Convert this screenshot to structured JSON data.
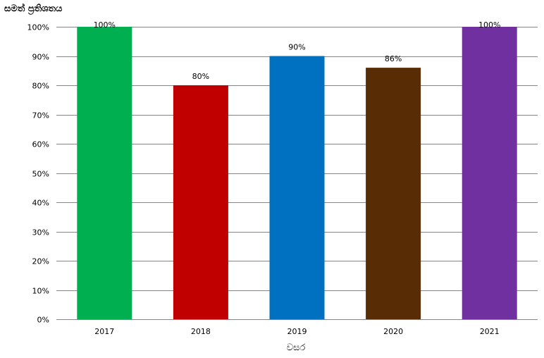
{
  "chart_data": {
    "type": "bar",
    "title": "",
    "xlabel": "වසර",
    "ylabel": "සමත් ප්‍රතිශතය",
    "categories": [
      "2017",
      "2018",
      "2019",
      "2020",
      "2021"
    ],
    "values": [
      100,
      80,
      90,
      86,
      100
    ],
    "value_labels": [
      "100%",
      "80%",
      "90%",
      "86%",
      "100%"
    ],
    "colors": [
      "#00B050",
      "#C00000",
      "#0070C0",
      "#582C04",
      "#7030A0"
    ],
    "ylim": [
      0,
      100
    ],
    "yticks": [
      0,
      10,
      20,
      30,
      40,
      50,
      60,
      70,
      80,
      90,
      100
    ],
    "ytick_labels": [
      "0%",
      "10%",
      "20%",
      "30%",
      "40%",
      "50%",
      "60%",
      "70%",
      "80%",
      "90%",
      "100%"
    ],
    "grid": true,
    "legend": "none"
  }
}
